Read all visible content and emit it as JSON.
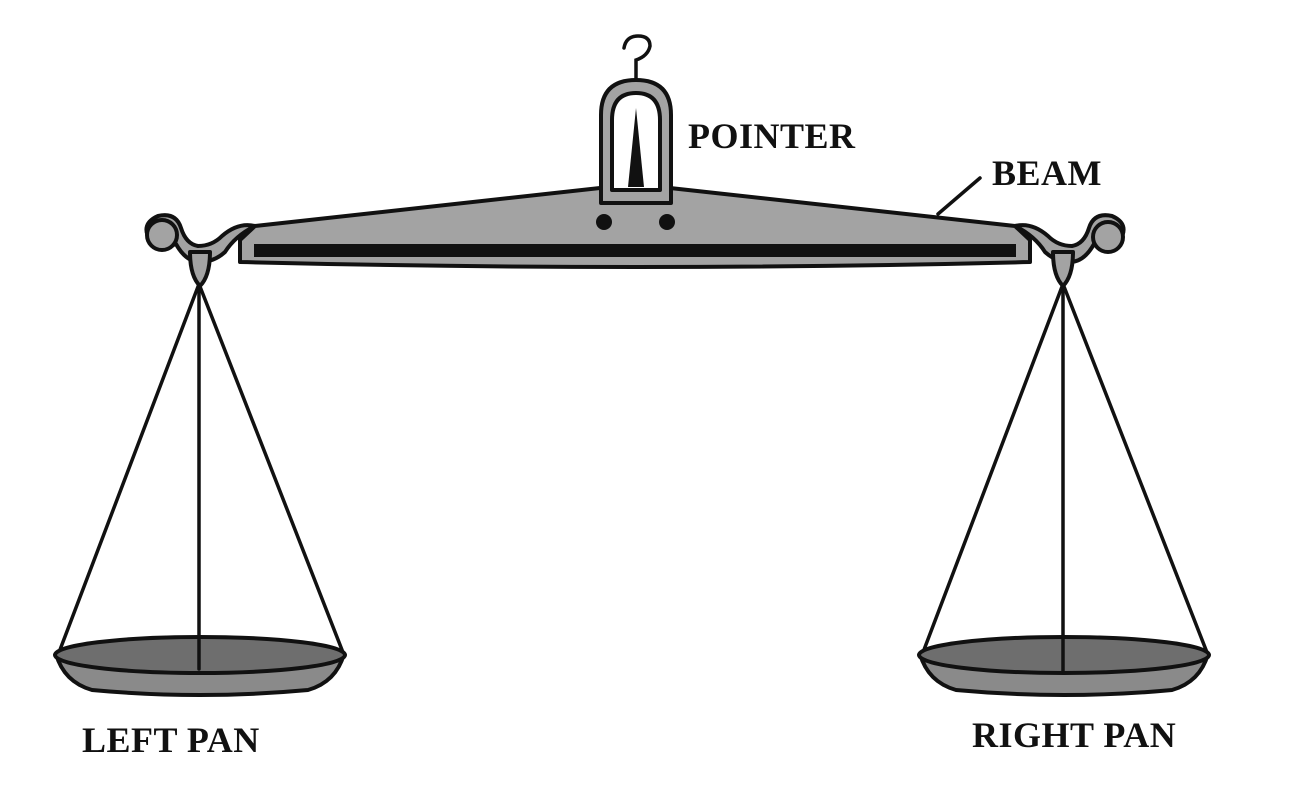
{
  "labels": {
    "pointer": "POINTER",
    "beam": "BEAM",
    "left_pan": "LEFT PAN",
    "right_pan": "RIGHT PAN"
  },
  "colors": {
    "beam_fill": "#a3a3a3",
    "pan_rim": "#6e6e6e",
    "pan_body": "#8a8a8a",
    "outline": "#111111",
    "background": "#ffffff"
  }
}
